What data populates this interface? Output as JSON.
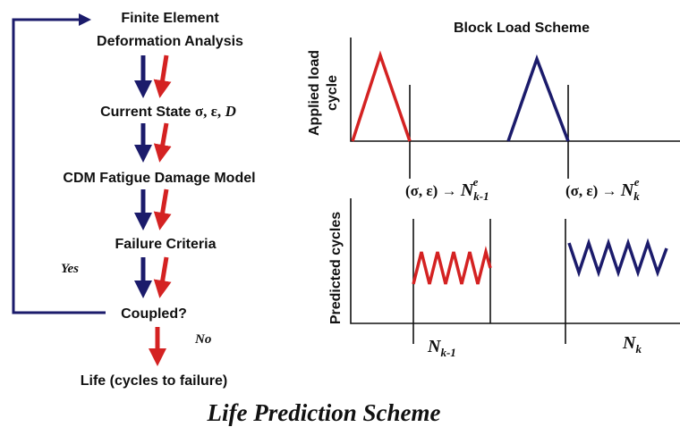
{
  "flowchart": {
    "nodes": [
      {
        "label": [
          "Finite Element",
          "Deformation Analysis"
        ]
      },
      {
        "label": "Current State",
        "symbols": "σ, ε,",
        "variable": "D"
      },
      {
        "label": "CDM Fatigue Damage Model"
      },
      {
        "label": "Failure Criteria"
      },
      {
        "label": "Coupled?"
      },
      {
        "label": "Life (cycles to failure)"
      }
    ],
    "yes_label": "Yes",
    "no_label": "No"
  },
  "block_load": {
    "title": "Block Load Scheme",
    "top_axis_label": [
      "Applied load",
      "cycle"
    ],
    "bottom_axis_label": "Predicted cycles",
    "markers": [
      {
        "prefix": "(σ, ε) →",
        "symbol": "N",
        "subscript": "k-1",
        "superscript": "e"
      },
      {
        "prefix": "(σ, ε) →",
        "symbol": "N",
        "subscript": "k",
        "superscript": "e"
      }
    ],
    "blocks": [
      {
        "symbol": "N",
        "subscript": "k-1"
      },
      {
        "symbol": "N",
        "subscript": "k"
      }
    ]
  },
  "caption": "Life Prediction Scheme"
}
